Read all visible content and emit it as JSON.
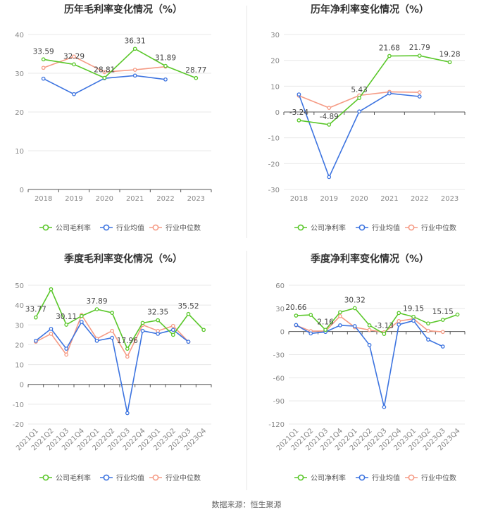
{
  "source": "数据来源：恒生聚源",
  "colors": {
    "company": "#5ac72a",
    "industry_avg": "#3d74e0",
    "industry_median": "#f59b85",
    "axis_text": "#888888",
    "grid": "#e8e8e8",
    "title": "#333333"
  },
  "chart_data": [
    {
      "type": "line",
      "title": "历年毛利率变化情况（%）",
      "categories": [
        "2018",
        "2019",
        "2020",
        "2021",
        "2022",
        "2023"
      ],
      "ylim": [
        0,
        40
      ],
      "yticks": [
        0,
        10,
        20,
        30,
        40
      ],
      "grid": true,
      "legend": "bottom",
      "series": [
        {
          "name": "公司毛利率",
          "key": "company",
          "values": [
            33.59,
            32.29,
            28.81,
            36.31,
            31.89,
            28.77
          ],
          "labels": [
            "33.59",
            "32.29",
            "28.81",
            "36.31",
            "31.89",
            "28.77"
          ]
        },
        {
          "name": "行业均值",
          "key": "industry_avg",
          "values": [
            28.6,
            24.6,
            28.7,
            29.4,
            28.4,
            null
          ]
        },
        {
          "name": "行业中位数",
          "key": "industry_median",
          "values": [
            31.4,
            34.3,
            30.3,
            30.9,
            31.7,
            null
          ]
        }
      ]
    },
    {
      "type": "line",
      "title": "历年净利率变化情况（%）",
      "categories": [
        "2018",
        "2019",
        "2020",
        "2021",
        "2022",
        "2023"
      ],
      "ylim": [
        -30,
        30
      ],
      "yticks": [
        -30,
        -20,
        -10,
        0,
        10,
        20,
        30
      ],
      "grid": true,
      "legend": "bottom",
      "series": [
        {
          "name": "公司净利率",
          "key": "company",
          "values": [
            -3.24,
            -4.89,
            5.43,
            21.68,
            21.79,
            19.28
          ],
          "labels": [
            "-3.24",
            "-4.89",
            "5.43",
            "21.68",
            "21.79",
            "19.28"
          ]
        },
        {
          "name": "行业均值",
          "key": "industry_avg",
          "values": [
            6.8,
            -25.2,
            0.2,
            7.2,
            6.0,
            null
          ]
        },
        {
          "name": "行业中位数",
          "key": "industry_median",
          "values": [
            6.3,
            1.6,
            6.4,
            7.8,
            7.6,
            null
          ]
        }
      ]
    },
    {
      "type": "line",
      "title": "季度毛利率变化情况（%）",
      "categories": [
        "2021Q1",
        "2021Q2",
        "2021Q3",
        "2021Q4",
        "2022Q1",
        "2022Q2",
        "2022Q3",
        "2022Q4",
        "2023Q1",
        "2023Q2",
        "2023Q3",
        "2023Q4"
      ],
      "ylim": [
        -20,
        50
      ],
      "yticks": [
        -20,
        -10,
        0,
        10,
        20,
        30,
        40,
        50
      ],
      "grid": true,
      "legend": "bottom",
      "series": [
        {
          "name": "公司毛利率",
          "key": "company",
          "values": [
            33.77,
            48.0,
            30.11,
            34.5,
            37.89,
            36.1,
            17.96,
            31.0,
            32.35,
            25.0,
            35.52,
            27.5
          ],
          "labels": [
            "33.77",
            "",
            "30.11",
            "",
            "37.89",
            "",
            "17.96",
            "",
            "32.35",
            "",
            "35.52",
            ""
          ]
        },
        {
          "name": "行业均值",
          "key": "industry_avg",
          "values": [
            22.0,
            28.0,
            18.0,
            31.5,
            22.0,
            23.5,
            -14.5,
            27.0,
            25.5,
            27.5,
            21.5,
            null
          ]
        },
        {
          "name": "行业中位数",
          "key": "industry_median",
          "values": [
            21.5,
            25.5,
            15.0,
            35.0,
            23.0,
            27.0,
            14.0,
            30.0,
            27.0,
            29.5,
            21.5,
            null
          ]
        }
      ]
    },
    {
      "type": "line",
      "title": "季度净利率变化情况（%）",
      "categories": [
        "2021Q1",
        "2021Q2",
        "2021Q3",
        "2021Q4",
        "2022Q1",
        "2022Q2",
        "2022Q3",
        "2022Q4",
        "2023Q1",
        "2023Q2",
        "2023Q3",
        "2023Q4"
      ],
      "ylim": [
        -120,
        60
      ],
      "yticks": [
        -120,
        -90,
        -60,
        -30,
        0,
        30,
        60
      ],
      "grid": true,
      "legend": "bottom",
      "series": [
        {
          "name": "公司净利率",
          "key": "company",
          "values": [
            20.66,
            21.5,
            2.16,
            25.0,
            30.32,
            8.0,
            -3.13,
            24.0,
            19.15,
            10.5,
            15.15,
            22.0
          ],
          "labels": [
            "20.66",
            "",
            "2.16",
            "",
            "30.32",
            "",
            "-3.13",
            "",
            "19.15",
            "",
            "15.15",
            ""
          ]
        },
        {
          "name": "行业均值",
          "key": "industry_avg",
          "values": [
            8.5,
            -2.5,
            -0.5,
            8.0,
            7.0,
            -17.5,
            -98.0,
            9.0,
            14.0,
            -10.5,
            -19.5,
            null
          ]
        },
        {
          "name": "行业中位数",
          "key": "industry_median",
          "values": [
            8.0,
            0.5,
            0.5,
            20.0,
            5.5,
            2.0,
            -1.0,
            13.5,
            16.5,
            1.0,
            -0.5,
            null
          ]
        }
      ]
    }
  ]
}
